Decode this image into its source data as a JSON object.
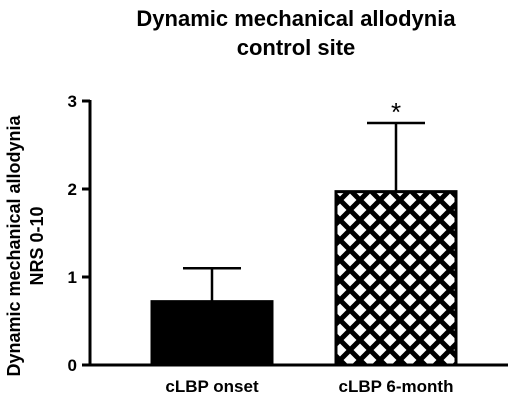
{
  "chart_data": {
    "type": "bar",
    "title_lines": [
      "Dynamic mechanical allodynia",
      "control site"
    ],
    "ylabel_lines": [
      "Dynamic mechanical allodynia",
      "NRS 0-10"
    ],
    "xlabel": "",
    "categories": [
      "cLBP onset",
      "cLBP 6-month"
    ],
    "values": [
      0.72,
      1.97
    ],
    "errors": [
      0.38,
      0.78
    ],
    "fills": [
      "solid",
      "crosshatch"
    ],
    "ylim": [
      0,
      3
    ],
    "yticks": [
      "0",
      "1",
      "2",
      "3"
    ],
    "annotations": [
      {
        "category": "cLBP 6-month",
        "text": "*"
      }
    ],
    "grid": false,
    "legend": "none",
    "colors": {
      "bar": "#000000",
      "background": "#ffffff"
    }
  }
}
